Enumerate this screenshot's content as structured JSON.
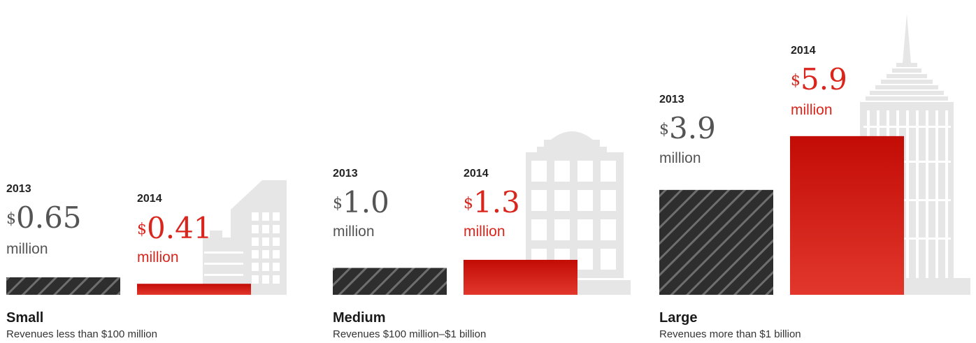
{
  "chart_data": {
    "type": "bar",
    "series": [
      {
        "name": "2013",
        "values": [
          0.65,
          1.0,
          3.9
        ]
      },
      {
        "name": "2014",
        "values": [
          0.41,
          1.3,
          5.9
        ]
      }
    ],
    "categories": [
      "Small",
      "Medium",
      "Large"
    ],
    "category_descriptions": [
      "Revenues less than $100 million",
      "Revenues $100 million–$1 billion",
      "Revenues more than $1 billion"
    ],
    "unit": "million",
    "currency": "$",
    "labels": [
      {
        "year13": "2013",
        "val13": "0.65",
        "year14": "2014",
        "val14": "0.41"
      },
      {
        "year13": "2013",
        "val13": "1.0",
        "year14": "2014",
        "val14": "1.3"
      },
      {
        "year13": "2013",
        "val13": "3.9",
        "year14": "2014",
        "val14": "5.9"
      }
    ],
    "colors": {
      "2013": "#3c3c3c",
      "2014": "#c8180e",
      "building": "#e6e6e6",
      "text_grey": "#545454",
      "text_red": "#d9251c"
    }
  }
}
